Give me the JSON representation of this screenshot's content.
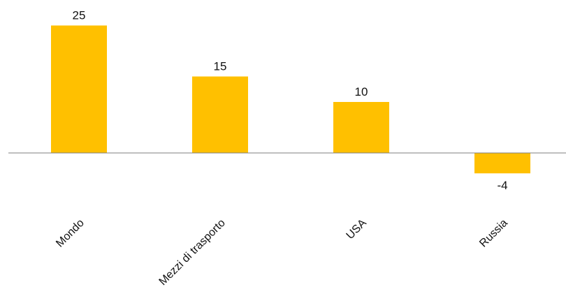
{
  "chart_data": {
    "type": "bar",
    "categories": [
      "Mondo",
      "Mezzi di trasporto",
      "USA",
      "Russia"
    ],
    "values": [
      25,
      15,
      10,
      -4
    ],
    "data_labels": [
      "25",
      "15",
      "10",
      "-4"
    ],
    "title": "",
    "xlabel": "",
    "ylabel": "",
    "ylim": [
      -4,
      25
    ],
    "grid": false,
    "legend": "none",
    "bar_color": "#FFC000",
    "axis_color": "#7F7F7F"
  }
}
